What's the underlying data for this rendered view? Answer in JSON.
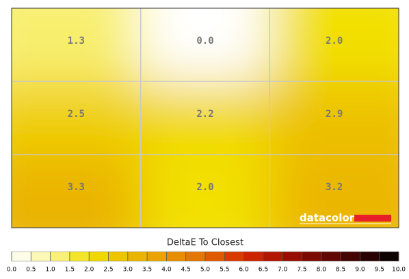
{
  "chart_data": {
    "type": "heatmap",
    "rows": 3,
    "cols": 3,
    "values": [
      1.3,
      0.0,
      2.0,
      2.5,
      2.2,
      2.9,
      3.3,
      2.0,
      3.2
    ],
    "value_labels": [
      "1.3",
      "0.0",
      "2.0",
      "2.5",
      "2.2",
      "2.9",
      "3.3",
      "2.0",
      "3.2"
    ],
    "colorbar_label": "DeltaE To Closest",
    "watermark": "datacolor",
    "clim": [
      0,
      10
    ],
    "colors": [
      "#ffffff",
      "#fbf5a0",
      "#f2e000",
      "#ebbd00",
      "#e99a00",
      "#e26a00",
      "#d62a00",
      "#a41000",
      "#6e0800",
      "#350303",
      "#000000"
    ],
    "cticks": [
      {
        "value": 0,
        "label": "0.0"
      },
      0.5,
      {
        "value": 1,
        "label": "1.0"
      },
      1.5,
      {
        "value": 2,
        "label": "2.0"
      },
      2.5,
      {
        "value": 3,
        "label": "3.0"
      },
      3.5,
      {
        "value": 4,
        "label": "4.0"
      },
      4.5,
      {
        "value": 5,
        "label": "5.0"
      },
      5.5,
      {
        "value": 6,
        "label": "6.0"
      },
      6.5,
      {
        "value": 7,
        "label": "7.0"
      },
      7.5,
      {
        "value": 8,
        "label": "8.0"
      },
      8.5,
      {
        "value": 9,
        "label": "9.0"
      },
      9.5,
      {
        "value": 10,
        "label": "10.0"
      }
    ]
  }
}
